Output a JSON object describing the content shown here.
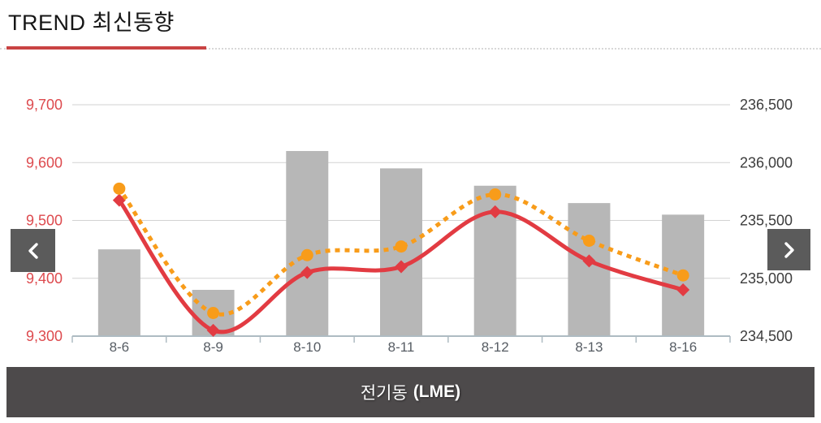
{
  "header": {
    "title": "TREND 최신동향"
  },
  "nav": {
    "prev_icon": "chevron-left",
    "next_icon": "chevron-right"
  },
  "footer": {
    "metal": "전기동",
    "market": "(LME)"
  },
  "colors": {
    "red_line": "#E23B42",
    "orange_line": "#F89C1A",
    "bar_gray": "#B7B7B7",
    "gridline": "#D2D2D2",
    "axis_line": "#AEBBC2",
    "left_label": "#DD4A4E",
    "right_label": "#3C3C3C",
    "x_label": "#575D64",
    "nav_bg": "#5B5B5B",
    "footer_bg": "#4D4A4B",
    "title_underline": "#C94343"
  },
  "chart_data": {
    "type": "combo",
    "title": "TREND 최신동향",
    "subtitle_footer": "전기동 (LME)",
    "categories": [
      "8-6",
      "8-9",
      "8-10",
      "8-11",
      "8-12",
      "8-13",
      "8-16"
    ],
    "series": [
      {
        "name": "gray-bars",
        "type": "bar",
        "axis": "right",
        "color": "#B7B7B7",
        "values": [
          235250,
          234900,
          236100,
          235950,
          235800,
          235650,
          235550
        ]
      },
      {
        "name": "red-solid-line",
        "type": "line",
        "line_style": "solid",
        "marker": "diamond",
        "axis": "left",
        "color": "#E23B42",
        "values": [
          9535,
          9310,
          9410,
          9420,
          9515,
          9430,
          9380
        ]
      },
      {
        "name": "orange-dotted-line",
        "type": "line",
        "line_style": "dotted",
        "marker": "circle",
        "axis": "left",
        "color": "#F89C1A",
        "values": [
          9555,
          9340,
          9440,
          9455,
          9545,
          9465,
          9405
        ]
      }
    ],
    "left_axis": {
      "min": 9300,
      "max": 9700,
      "position": "left",
      "ticks": [
        {
          "label": "9,700",
          "value": 9700
        },
        {
          "label": "9,600",
          "value": 9600
        },
        {
          "label": "9,500",
          "value": 9500
        },
        {
          "label": "9,400",
          "value": 9400
        },
        {
          "label": "9,300",
          "value": 9300
        }
      ]
    },
    "right_axis": {
      "min": 234500,
      "max": 236500,
      "position": "right",
      "ticks": [
        {
          "label": "236,500",
          "value": 236500
        },
        {
          "label": "236,000",
          "value": 236000
        },
        {
          "label": "235,500",
          "value": 235500
        },
        {
          "label": "235,000",
          "value": 235000
        },
        {
          "label": "234,500",
          "value": 234500
        }
      ]
    },
    "grid": true,
    "legend": "none"
  }
}
